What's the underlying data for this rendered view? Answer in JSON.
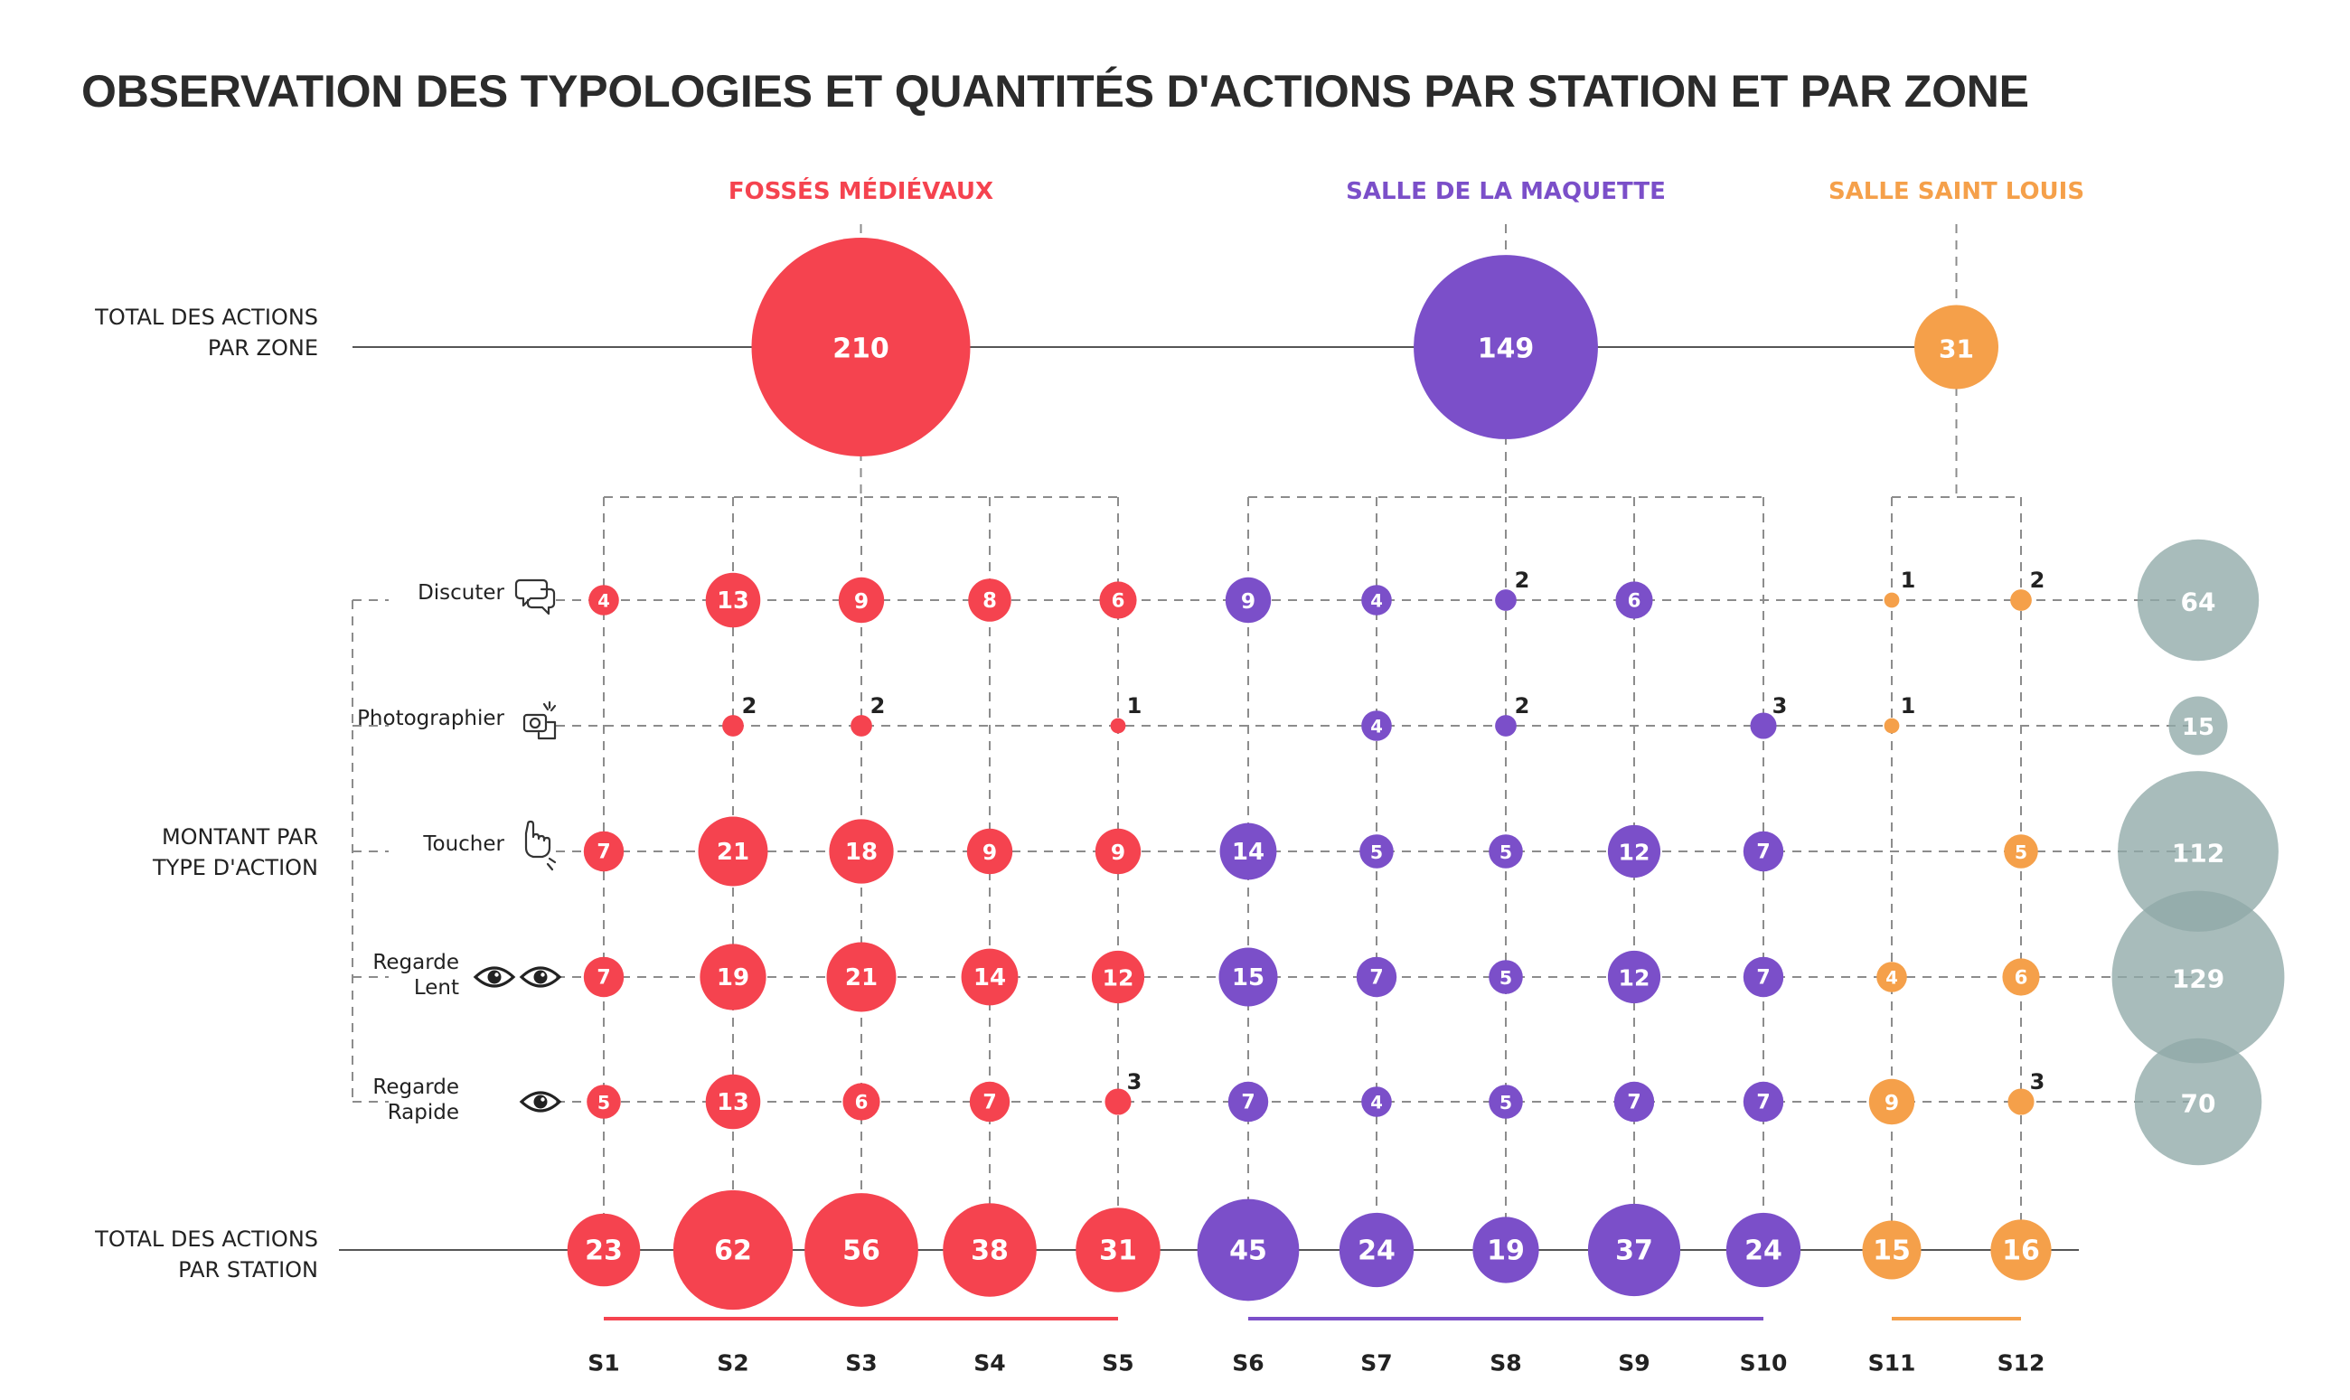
{
  "chart_data": {
    "type": "bubble-matrix",
    "title": "OBSERVATION DES TYPOLOGIES ET QUANTITÉS D'ACTIONS PAR STATION ET PAR ZONE",
    "zones": [
      {
        "name": "FOSSÉS MÉDIÉVAUX",
        "total": 210,
        "color": "#f5434f",
        "stations": [
          "S1",
          "S2",
          "S3",
          "S4",
          "S5"
        ]
      },
      {
        "name": "SALLE DE LA MAQUETTE",
        "total": 149,
        "color": "#7b4fc9",
        "stations": [
          "S6",
          "S7",
          "S8",
          "S9",
          "S10"
        ]
      },
      {
        "name": "SALLE SAINT LOUIS",
        "total": 31,
        "color": "#f5a04a",
        "stations": [
          "S11",
          "S12"
        ]
      }
    ],
    "stations": [
      "S1",
      "S2",
      "S3",
      "S4",
      "S5",
      "S6",
      "S7",
      "S8",
      "S9",
      "S10",
      "S11",
      "S12"
    ],
    "row_labels": {
      "zone_total": [
        "TOTAL DES ACTIONS",
        "PAR ZONE"
      ],
      "by_type": [
        "MONTANT PAR",
        "TYPE D'ACTION"
      ],
      "station_total": [
        "TOTAL DES ACTIONS",
        "PAR STATION"
      ]
    },
    "action_types": [
      {
        "name": "Discuter",
        "label_lines": [
          "Discuter"
        ],
        "icon": "speech-bubbles-icon",
        "total": 64,
        "values": [
          4,
          13,
          9,
          8,
          6,
          9,
          4,
          2,
          6,
          null,
          1,
          2
        ]
      },
      {
        "name": "Photographier",
        "label_lines": [
          "Photographier"
        ],
        "icon": "camera-phone-icon",
        "total": 15,
        "values": [
          null,
          2,
          2,
          null,
          1,
          null,
          4,
          2,
          null,
          3,
          1,
          null
        ]
      },
      {
        "name": "Toucher",
        "label_lines": [
          "Toucher"
        ],
        "icon": "touch-hand-icon",
        "total": 112,
        "values": [
          7,
          21,
          18,
          9,
          9,
          14,
          5,
          5,
          12,
          7,
          null,
          5
        ]
      },
      {
        "name": "Regarde Lent",
        "label_lines": [
          "Regarde",
          "Lent"
        ],
        "icon": "two-eyes-icon",
        "total": 129,
        "values": [
          7,
          19,
          21,
          14,
          12,
          15,
          7,
          5,
          12,
          7,
          4,
          6
        ]
      },
      {
        "name": "Regarde Rapide",
        "label_lines": [
          "Regarde",
          "Rapide"
        ],
        "icon": "eye-icon",
        "total": 70,
        "values": [
          5,
          13,
          6,
          7,
          3,
          7,
          4,
          5,
          7,
          7,
          9,
          3
        ]
      }
    ],
    "station_totals": [
      23,
      62,
      56,
      38,
      31,
      45,
      24,
      19,
      37,
      24,
      15,
      16
    ],
    "type_total_color": "#8fa9a8"
  }
}
